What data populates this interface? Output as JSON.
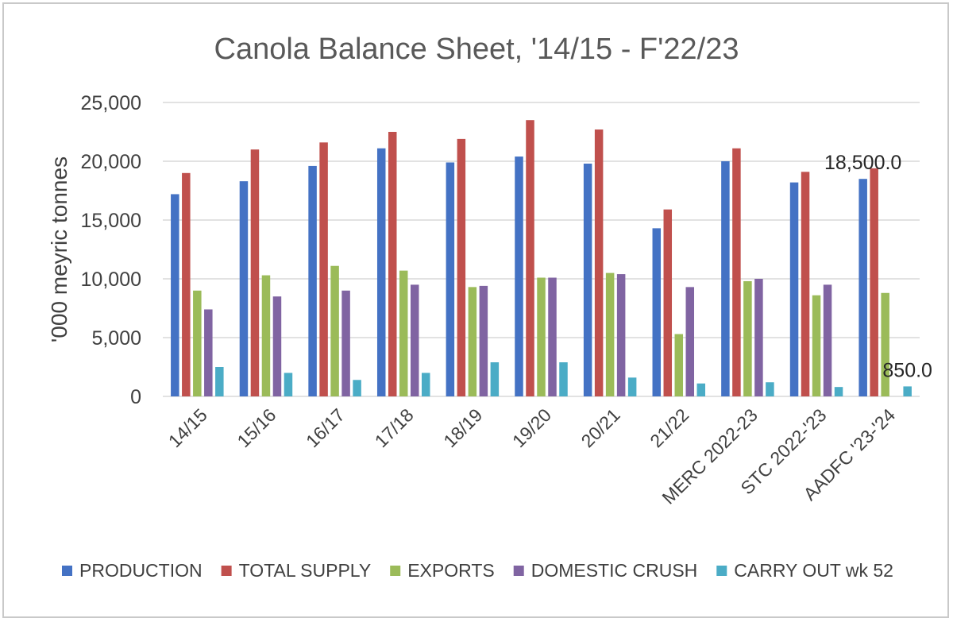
{
  "chart_data": {
    "type": "bar",
    "title": "Canola Balance Sheet, '14/15 - F'22/23",
    "xlabel": "",
    "ylabel": "'000 meyric tonnes",
    "ylim": [
      0,
      25000
    ],
    "yticks": [
      "0",
      "5,000",
      "10,000",
      "15,000",
      "20,000",
      "25,000"
    ],
    "ytick_values": [
      0,
      5000,
      10000,
      15000,
      20000,
      25000
    ],
    "grid": true,
    "legend_position": "bottom",
    "categories": [
      "14/15",
      "15/16",
      "16/17",
      "17/18",
      "18/19",
      "19/20",
      "20/21",
      "21/22",
      "MERC 2022-23",
      "STC 2022-'23",
      "AADFC '23-'24"
    ],
    "series": [
      {
        "name": "PRODUCTION",
        "color": "#4472c4",
        "values": [
          17200,
          18300,
          19600,
          21100,
          19900,
          20400,
          19800,
          14300,
          20000,
          18200,
          18500
        ]
      },
      {
        "name": "TOTAL SUPPLY",
        "color": "#c0504d",
        "values": [
          19000,
          21000,
          21600,
          22500,
          21900,
          23500,
          22700,
          15900,
          21100,
          19100,
          19400
        ]
      },
      {
        "name": "EXPORTS",
        "color": "#9bbb59",
        "values": [
          9000,
          10300,
          11100,
          10700,
          9300,
          10100,
          10500,
          5300,
          9800,
          8600,
          8800
        ]
      },
      {
        "name": "DOMESTIC CRUSH",
        "color": "#8064a2",
        "values": [
          7400,
          8500,
          9000,
          9500,
          9400,
          10100,
          10400,
          9300,
          10000,
          9500,
          null
        ]
      },
      {
        "name": "CARRY OUT wk 52",
        "color": "#4bacc6",
        "values": [
          2500,
          2000,
          1400,
          2000,
          2900,
          2900,
          1600,
          1100,
          1200,
          800,
          850
        ]
      }
    ],
    "annotations": [
      {
        "text": "18,500.0",
        "series": "PRODUCTION",
        "category": "AADFC '23-'24"
      },
      {
        "text": "850.0",
        "series": "CARRY OUT wk 52",
        "category": "AADFC '23-'24"
      }
    ]
  }
}
